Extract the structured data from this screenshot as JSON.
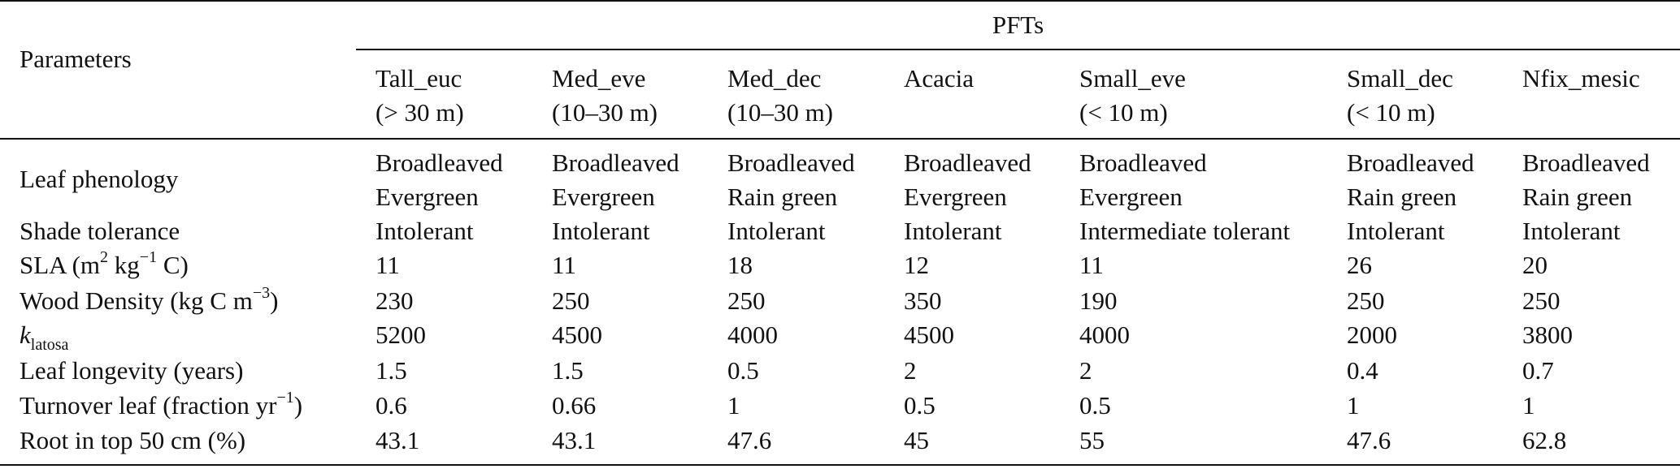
{
  "table": {
    "group_header": "PFTs",
    "param_header": "Parameters",
    "columns": [
      {
        "name": "Tall_euc",
        "range": "(> 30 m)"
      },
      {
        "name": "Med_eve",
        "range": "(10–30 m)"
      },
      {
        "name": "Med_dec",
        "range": "(10–30 m)"
      },
      {
        "name": "Acacia",
        "range": ""
      },
      {
        "name": "Small_eve",
        "range": "(< 10 m)"
      },
      {
        "name": "Small_dec",
        "range": "(< 10 m)"
      },
      {
        "name": "Nfix_mesic",
        "range": ""
      }
    ],
    "rows": [
      {
        "label": "Leaf phenology",
        "values": [
          [
            "Broadleaved",
            "Evergreen"
          ],
          [
            "Broadleaved",
            "Evergreen"
          ],
          [
            "Broadleaved",
            "Rain green"
          ],
          [
            "Broadleaved",
            "Evergreen"
          ],
          [
            "Broadleaved",
            "Evergreen"
          ],
          [
            "Broadleaved",
            "Rain green"
          ],
          [
            "Broadleaved",
            "Rain green"
          ]
        ]
      },
      {
        "label": "Shade tolerance",
        "values": [
          "Intolerant",
          "Intolerant",
          "Intolerant",
          "Intolerant",
          "Intermediate tolerant",
          "Intolerant",
          "Intolerant"
        ]
      },
      {
        "label_parts": {
          "pre": "SLA (m",
          "sup1": "2",
          "mid": " kg",
          "sup2": "−1",
          "post": " C)"
        },
        "values": [
          "11",
          "11",
          "18",
          "12",
          "11",
          "26",
          "20"
        ]
      },
      {
        "label_parts": {
          "pre": "Wood Density (kg C m",
          "sup1": "−3",
          "post": ")"
        },
        "values": [
          "230",
          "250",
          "250",
          "350",
          "190",
          "250",
          "250"
        ]
      },
      {
        "label_parts": {
          "base": "k",
          "sub": "latosa"
        },
        "values": [
          "5200",
          "4500",
          "4000",
          "4500",
          "4000",
          "2000",
          "3800"
        ]
      },
      {
        "label": "Leaf longevity (years)",
        "values": [
          "1.5",
          "1.5",
          "0.5",
          "2",
          "2",
          "0.4",
          "0.7"
        ]
      },
      {
        "label_parts": {
          "pre": "Turnover leaf (fraction yr",
          "sup1": "−1",
          "post": ")"
        },
        "values": [
          "0.6",
          "0.66",
          "1",
          "0.5",
          "0.5",
          "1",
          "1"
        ]
      },
      {
        "label": "Root in top 50 cm (%)",
        "values": [
          "43.1",
          "43.1",
          "47.6",
          "45",
          "55",
          "47.6",
          "62.8"
        ]
      }
    ]
  }
}
